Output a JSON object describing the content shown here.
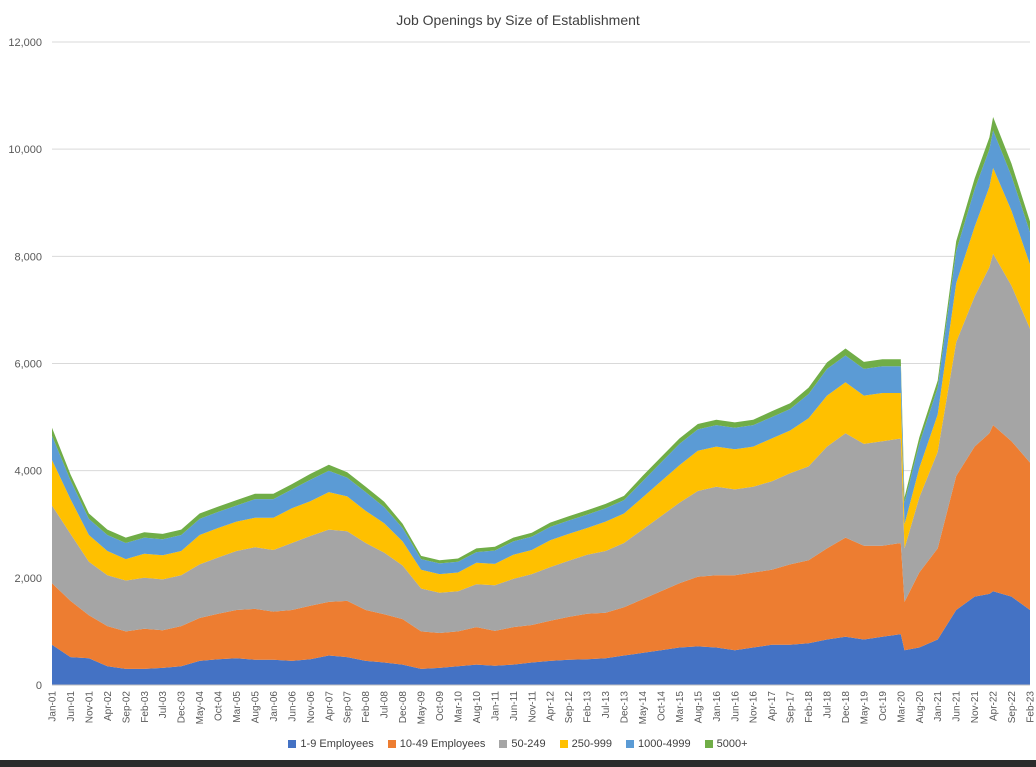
{
  "chart_data": {
    "type": "area",
    "stacked": true,
    "title": "Job Openings by Size of Establishment",
    "xlabel": "",
    "ylabel": "",
    "ylim": [
      0,
      12000
    ],
    "yticks": [
      "0",
      "2,000",
      "4,000",
      "6,000",
      "8,000",
      "10,000",
      "12,000"
    ],
    "grid": true,
    "legend_position": "bottom",
    "x_range": [
      "2001-01",
      "2023-02"
    ],
    "xtick_labels": [
      "Jan-01",
      "Jun-01",
      "Nov-01",
      "Apr-02",
      "Sep-02",
      "Feb-03",
      "Jul-03",
      "Dec-03",
      "May-04",
      "Oct-04",
      "Mar-05",
      "Aug-05",
      "Jan-06",
      "Jun-06",
      "Nov-06",
      "Apr-07",
      "Sep-07",
      "Feb-08",
      "Jul-08",
      "Dec-08",
      "May-09",
      "Oct-09",
      "Mar-10",
      "Aug-10",
      "Jan-11",
      "Jun-11",
      "Nov-11",
      "Apr-12",
      "Sep-12",
      "Feb-13",
      "Jul-13",
      "Dec-13",
      "May-14",
      "Oct-14",
      "Mar-15",
      "Aug-15",
      "Jan-16",
      "Jun-16",
      "Nov-16",
      "Apr-17",
      "Sep-17",
      "Feb-18",
      "Jul-18",
      "Dec-18",
      "May-19",
      "Oct-19",
      "Mar-20",
      "Aug-20",
      "Jan-21",
      "Jun-21",
      "Nov-21",
      "Apr-22",
      "Sep-22",
      "Feb-23"
    ],
    "anchor_dates": [
      "2001-01",
      "2001-06",
      "2001-11",
      "2002-04",
      "2002-09",
      "2003-02",
      "2003-07",
      "2003-12",
      "2004-05",
      "2004-10",
      "2005-03",
      "2005-08",
      "2006-01",
      "2006-06",
      "2006-11",
      "2007-04",
      "2007-09",
      "2008-02",
      "2008-07",
      "2008-12",
      "2009-05",
      "2009-10",
      "2010-03",
      "2010-08",
      "2011-01",
      "2011-06",
      "2011-11",
      "2012-04",
      "2012-09",
      "2013-02",
      "2013-07",
      "2013-12",
      "2014-05",
      "2014-10",
      "2015-03",
      "2015-08",
      "2016-01",
      "2016-06",
      "2016-11",
      "2017-04",
      "2017-09",
      "2018-02",
      "2018-07",
      "2018-12",
      "2019-05",
      "2019-10",
      "2020-03",
      "2020-04",
      "2020-08",
      "2021-01",
      "2021-06",
      "2021-11",
      "2022-03",
      "2022-04",
      "2022-09",
      "2023-02"
    ],
    "series": [
      {
        "name": "1-9 Employees",
        "color": "#4472c4",
        "values": [
          750,
          520,
          500,
          350,
          300,
          300,
          320,
          350,
          450,
          480,
          500,
          470,
          470,
          450,
          480,
          550,
          520,
          450,
          420,
          380,
          300,
          320,
          350,
          380,
          360,
          380,
          420,
          450,
          470,
          480,
          500,
          550,
          600,
          650,
          700,
          720,
          700,
          650,
          700,
          750,
          750,
          780,
          850,
          900,
          850,
          900,
          950,
          650,
          700,
          850,
          1400,
          1650,
          1700,
          1750,
          1650,
          1400
        ]
      },
      {
        "name": "10-49 Employees",
        "color": "#ed7d31",
        "values": [
          1150,
          1050,
          800,
          750,
          700,
          750,
          700,
          750,
          800,
          850,
          900,
          950,
          900,
          950,
          1000,
          1000,
          1050,
          950,
          900,
          850,
          700,
          650,
          650,
          700,
          650,
          700,
          700,
          750,
          800,
          850,
          850,
          900,
          1000,
          1100,
          1200,
          1300,
          1350,
          1400,
          1400,
          1400,
          1500,
          1550,
          1700,
          1850,
          1750,
          1700,
          1700,
          900,
          1400,
          1700,
          2500,
          2800,
          3000,
          3100,
          2900,
          2750
        ]
      },
      {
        "name": "50-249",
        "color": "#a5a5a5",
        "values": [
          1450,
          1250,
          1000,
          950,
          950,
          950,
          950,
          950,
          1000,
          1050,
          1100,
          1150,
          1150,
          1250,
          1300,
          1350,
          1300,
          1250,
          1150,
          1000,
          800,
          750,
          750,
          800,
          850,
          900,
          950,
          1000,
          1050,
          1100,
          1150,
          1200,
          1300,
          1400,
          1500,
          1600,
          1650,
          1600,
          1600,
          1650,
          1700,
          1750,
          1900,
          1950,
          1900,
          1950,
          1950,
          1000,
          1400,
          1800,
          2500,
          2800,
          3100,
          3200,
          2900,
          2500
        ]
      },
      {
        "name": "250-999",
        "color": "#ffc000",
        "values": [
          850,
          650,
          500,
          450,
          400,
          450,
          450,
          450,
          550,
          550,
          550,
          550,
          600,
          650,
          650,
          700,
          650,
          600,
          550,
          450,
          350,
          350,
          350,
          400,
          400,
          450,
          450,
          500,
          500,
          500,
          550,
          550,
          600,
          650,
          700,
          750,
          750,
          750,
          750,
          800,
          800,
          900,
          950,
          950,
          900,
          900,
          850,
          450,
          550,
          700,
          1100,
          1300,
          1500,
          1600,
          1400,
          1200
        ]
      },
      {
        "name": "1000-4999",
        "color": "#5b9bd5",
        "values": [
          450,
          350,
          300,
          300,
          300,
          300,
          300,
          300,
          300,
          300,
          300,
          350,
          350,
          350,
          400,
          400,
          350,
          350,
          300,
          250,
          200,
          200,
          200,
          200,
          250,
          250,
          250,
          250,
          250,
          250,
          250,
          250,
          300,
          350,
          400,
          400,
          400,
          400,
          400,
          400,
          400,
          450,
          500,
          500,
          500,
          500,
          500,
          400,
          450,
          500,
          600,
          700,
          700,
          700,
          650,
          600
        ]
      },
      {
        "name": "5000+",
        "color": "#70ad47",
        "values": [
          150,
          110,
          100,
          100,
          100,
          100,
          100,
          100,
          100,
          100,
          100,
          100,
          100,
          100,
          110,
          110,
          100,
          100,
          100,
          80,
          60,
          60,
          60,
          70,
          70,
          70,
          70,
          80,
          80,
          80,
          80,
          80,
          100,
          100,
          100,
          100,
          100,
          100,
          100,
          110,
          110,
          120,
          120,
          130,
          130,
          130,
          130,
          100,
          120,
          130,
          180,
          200,
          220,
          250,
          230,
          200
        ]
      }
    ]
  }
}
